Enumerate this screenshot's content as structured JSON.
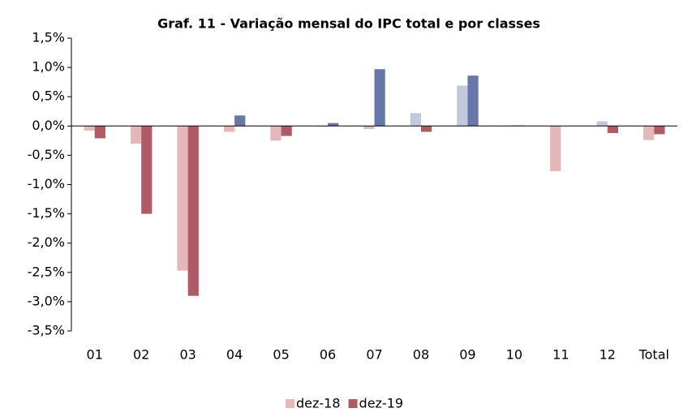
{
  "chart_data": {
    "type": "bar",
    "title": "Graf. 11 - Variação mensal do IPC total e por classes",
    "categories": [
      "01",
      "02",
      "03",
      "04",
      "05",
      "06",
      "07",
      "08",
      "09",
      "10",
      "11",
      "12",
      "Total"
    ],
    "series": [
      {
        "name": "dez-18",
        "color": "#e4b7b9",
        "positive_color": "#c3c9dc",
        "values": [
          -0.08,
          -0.3,
          -2.47,
          -0.1,
          -0.25,
          -0.01,
          -0.05,
          0.22,
          0.69,
          0.01,
          -0.77,
          0.08,
          -0.24
        ]
      },
      {
        "name": "dez-19",
        "color": "#b05a66",
        "positive_color": "#6677a8",
        "values": [
          -0.21,
          -1.5,
          -2.9,
          0.18,
          -0.17,
          0.05,
          0.97,
          -0.1,
          0.86,
          0.01,
          0,
          -0.12,
          -0.14
        ]
      }
    ],
    "ylim": [
      -3.5,
      1.5
    ],
    "yticks": [
      {
        "value": -3.5,
        "label": "-3,5%"
      },
      {
        "value": -3.0,
        "label": "-3,0%"
      },
      {
        "value": -2.5,
        "label": "-2,5%"
      },
      {
        "value": -2.0,
        "label": "-2,0%"
      },
      {
        "value": -1.5,
        "label": "-1,5%"
      },
      {
        "value": -1.0,
        "label": "-1,0%"
      },
      {
        "value": -0.5,
        "label": "-0,5%"
      },
      {
        "value": 0,
        "label": "0,0%"
      },
      {
        "value": 0.5,
        "label": "0,5%"
      },
      {
        "value": 1.0,
        "label": "1,0%"
      },
      {
        "value": 1.5,
        "label": "1,5%"
      }
    ],
    "grid": false,
    "legend": "bottom"
  }
}
